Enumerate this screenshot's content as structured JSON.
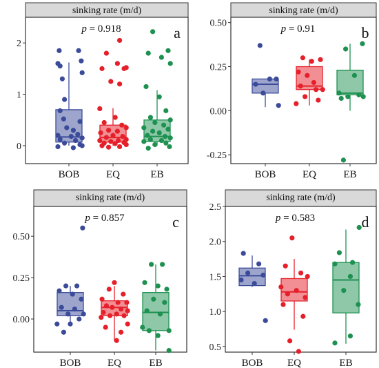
{
  "colors": {
    "BOB": "#3b4b9a",
    "EQ": "#e5202a",
    "EB": "#1e9151",
    "strip_fill": "#d9d9d9"
  },
  "chart_data": [
    {
      "type": "box",
      "id": "a",
      "panel_label": "a",
      "strip_title": "sinking rate (m/d)",
      "p_value_label": "p",
      "p_value_text": " = 0.918",
      "categories": [
        "BOB",
        "EQ",
        "EB"
      ],
      "ylim": [
        -0.35,
        2.5
      ],
      "yticks": [
        0,
        1,
        2
      ],
      "boxes": [
        {
          "q1": 0.07,
          "median": 0.17,
          "q3": 0.7,
          "whisker_low": 0.0,
          "whisker_high": 1.62
        },
        {
          "q1": 0.07,
          "median": 0.16,
          "q3": 0.4,
          "whisker_low": 0.0,
          "whisker_high": 0.73
        },
        {
          "q1": 0.08,
          "median": 0.18,
          "q3": 0.5,
          "whisker_low": 0.0,
          "whisker_high": 1.08
        }
      ],
      "points": [
        [
          [
            -0.22,
            1.85
          ],
          [
            0.22,
            1.85
          ],
          [
            -0.25,
            1.6
          ],
          [
            -0.2,
            1.55
          ],
          [
            0.28,
            1.65
          ],
          [
            0.3,
            1.42
          ],
          [
            -0.15,
            1.3
          ],
          [
            -0.1,
            0.9
          ],
          [
            -0.2,
            0.68
          ],
          [
            -0.12,
            0.52
          ],
          [
            0.25,
            0.47
          ],
          [
            -0.05,
            0.35
          ],
          [
            0.1,
            0.3
          ],
          [
            0.2,
            0.22
          ],
          [
            -0.25,
            0.2
          ],
          [
            0.05,
            0.18
          ],
          [
            0.3,
            0.15
          ],
          [
            -0.2,
            0.12
          ],
          [
            0.15,
            0.1
          ],
          [
            -0.1,
            0.05
          ],
          [
            0.25,
            0.02
          ],
          [
            -0.25,
            -0.02
          ],
          [
            0.1,
            -0.04
          ],
          [
            0.3,
            0.0
          ]
        ],
        [
          [
            0.15,
            2.05
          ],
          [
            -0.15,
            1.8
          ],
          [
            0.1,
            1.6
          ],
          [
            0.3,
            1.52
          ],
          [
            -0.05,
            1.25
          ],
          [
            0.15,
            1.2
          ],
          [
            -0.25,
            1.5
          ],
          [
            0.25,
            1.5
          ],
          [
            -0.3,
            0.72
          ],
          [
            0.05,
            0.55
          ],
          [
            -0.2,
            0.45
          ],
          [
            0.2,
            0.4
          ],
          [
            0.3,
            0.35
          ],
          [
            -0.1,
            0.3
          ],
          [
            0.1,
            0.28
          ],
          [
            -0.28,
            0.25
          ],
          [
            0.0,
            0.2
          ],
          [
            0.22,
            0.18
          ],
          [
            -0.15,
            0.16
          ],
          [
            0.3,
            0.12
          ],
          [
            -0.3,
            0.1
          ],
          [
            0.12,
            0.1
          ],
          [
            -0.05,
            0.08
          ],
          [
            0.25,
            0.06
          ],
          [
            -0.2,
            0.05
          ],
          [
            0.05,
            0.04
          ],
          [
            0.3,
            0.02
          ],
          [
            -0.25,
            0.0
          ],
          [
            0.15,
            -0.02
          ],
          [
            -0.1,
            -0.03
          ]
        ],
        [
          [
            -0.1,
            2.22
          ],
          [
            0.25,
            1.85
          ],
          [
            0.1,
            1.72
          ],
          [
            -0.2,
            1.8
          ],
          [
            0.3,
            1.6
          ],
          [
            -0.25,
            1.15
          ],
          [
            0.05,
            0.95
          ],
          [
            0.2,
            0.68
          ],
          [
            -0.15,
            0.55
          ],
          [
            0.3,
            0.5
          ],
          [
            -0.05,
            0.45
          ],
          [
            0.15,
            0.4
          ],
          [
            -0.3,
            0.35
          ],
          [
            0.25,
            0.32
          ],
          [
            -0.1,
            0.28
          ],
          [
            0.05,
            0.25
          ],
          [
            -0.22,
            0.2
          ],
          [
            0.18,
            0.18
          ],
          [
            0.3,
            0.15
          ],
          [
            -0.15,
            0.12
          ],
          [
            0.1,
            0.1
          ],
          [
            -0.3,
            0.08
          ],
          [
            0.2,
            0.05
          ],
          [
            -0.05,
            0.02
          ],
          [
            0.28,
            -0.02
          ],
          [
            -0.2,
            -0.05
          ]
        ]
      ]
    },
    {
      "type": "box",
      "id": "b",
      "panel_label": "b",
      "strip_title": "sinking rate (m/d)",
      "p_value_label": "p",
      "p_value_text": " = 0.91",
      "categories": [
        "BOB",
        "EQ",
        "EB"
      ],
      "ylim": [
        -0.3,
        0.53
      ],
      "yticks": [
        -0.25,
        0.0,
        0.25,
        0.5
      ],
      "ytick_labels": [
        "-0.25",
        "0.00",
        "0.25",
        "0.50"
      ],
      "boxes": [
        {
          "q1": 0.1,
          "median": 0.15,
          "q3": 0.18,
          "whisker_low": 0.02,
          "whisker_high": 0.18
        },
        {
          "q1": 0.12,
          "median": 0.14,
          "q3": 0.25,
          "whisker_low": 0.03,
          "whisker_high": 0.29
        },
        {
          "q1": 0.09,
          "median": 0.1,
          "q3": 0.23,
          "whisker_low": 0.0,
          "whisker_high": 0.38
        }
      ],
      "points": [
        [
          [
            -0.12,
            0.37
          ],
          [
            -0.22,
            0.15
          ],
          [
            0.1,
            0.18
          ],
          [
            0.25,
            0.18
          ],
          [
            -0.05,
            0.1
          ],
          [
            0.3,
            0.03
          ]
        ],
        [
          [
            -0.15,
            0.3
          ],
          [
            0.05,
            0.28
          ],
          [
            0.25,
            0.29
          ],
          [
            -0.25,
            0.22
          ],
          [
            -0.05,
            0.2
          ],
          [
            0.1,
            0.16
          ],
          [
            -0.2,
            0.14
          ],
          [
            0.15,
            0.12
          ],
          [
            0.3,
            0.12
          ],
          [
            -0.1,
            0.08
          ],
          [
            0.2,
            0.06
          ],
          [
            -0.3,
            0.04
          ]
        ],
        [
          [
            0.28,
            0.38
          ],
          [
            -0.1,
            0.35
          ],
          [
            0.1,
            0.2
          ],
          [
            -0.25,
            0.1
          ],
          [
            0.2,
            0.09
          ],
          [
            -0.05,
            0.08
          ],
          [
            0.3,
            0.08
          ],
          [
            -0.2,
            0.07
          ],
          [
            -0.15,
            -0.28
          ]
        ]
      ]
    },
    {
      "type": "box",
      "id": "c",
      "panel_label": "c",
      "strip_title": "sinking rate (m/d)",
      "p_value_label": "p",
      "p_value_text": " = 0.857",
      "categories": [
        "BOB",
        "EQ",
        "EB"
      ],
      "ylim": [
        -0.2,
        0.68
      ],
      "yticks": [
        0.0,
        0.25,
        0.5
      ],
      "ytick_labels": [
        "0.00",
        "0.25",
        "0.50"
      ],
      "boxes": [
        {
          "q1": 0.02,
          "median": 0.05,
          "q3": 0.16,
          "whisker_low": -0.02,
          "whisker_high": 0.2
        },
        {
          "q1": 0.02,
          "median": 0.07,
          "q3": 0.11,
          "whisker_low": -0.13,
          "whisker_high": 0.2
        },
        {
          "q1": -0.07,
          "median": 0.04,
          "q3": 0.16,
          "whisker_low": -0.19,
          "whisker_high": 0.33
        }
      ],
      "points": [
        [
          [
            0.28,
            0.55
          ],
          [
            -0.1,
            0.2
          ],
          [
            0.15,
            0.2
          ],
          [
            -0.25,
            0.17
          ],
          [
            0.05,
            0.15
          ],
          [
            0.25,
            0.12
          ],
          [
            -0.2,
            0.07
          ],
          [
            0.1,
            0.06
          ],
          [
            -0.05,
            0.03
          ],
          [
            0.3,
            0.03
          ],
          [
            -0.3,
            -0.03
          ],
          [
            0.0,
            -0.03
          ],
          [
            -0.15,
            -0.08
          ],
          [
            0.2,
            0.0
          ]
        ],
        [
          [
            0.0,
            0.22
          ],
          [
            -0.12,
            0.18
          ],
          [
            0.2,
            0.15
          ],
          [
            -0.28,
            0.12
          ],
          [
            0.08,
            0.1
          ],
          [
            0.28,
            0.1
          ],
          [
            -0.18,
            0.08
          ],
          [
            -0.05,
            0.07
          ],
          [
            0.15,
            0.06
          ],
          [
            0.3,
            0.05
          ],
          [
            -0.25,
            0.04
          ],
          [
            0.05,
            0.03
          ],
          [
            0.22,
            0.02
          ],
          [
            -0.1,
            0.02
          ],
          [
            -0.3,
            0.01
          ],
          [
            0.3,
            -0.03
          ],
          [
            -0.2,
            -0.05
          ],
          [
            0.15,
            -0.08
          ],
          [
            0.05,
            -0.13
          ]
        ],
        [
          [
            -0.1,
            0.33
          ],
          [
            0.15,
            0.33
          ],
          [
            -0.25,
            0.22
          ],
          [
            0.05,
            0.2
          ],
          [
            0.25,
            0.18
          ],
          [
            -0.05,
            0.12
          ],
          [
            0.2,
            0.1
          ],
          [
            -0.2,
            0.05
          ],
          [
            0.1,
            0.03
          ],
          [
            0.3,
            -0.07
          ],
          [
            -0.3,
            -0.05
          ],
          [
            -0.15,
            -0.07
          ],
          [
            0.05,
            -0.1
          ],
          [
            0.3,
            -0.19
          ]
        ]
      ]
    },
    {
      "type": "box",
      "id": "d",
      "panel_label": "d",
      "strip_title": "sinking rate (m/d)",
      "p_value_label": "p",
      "p_value_text": " = 0.583",
      "categories": [
        "BOB",
        "EQ",
        "EB"
      ],
      "ylim": [
        0.42,
        2.5
      ],
      "yticks": [
        0.5,
        1.0,
        1.5,
        2.0,
        2.5
      ],
      "ytick_labels": [
        "0.5",
        "1.0",
        "1.5",
        "2.0",
        "2.5"
      ],
      "boxes": [
        {
          "q1": 1.37,
          "median": 1.51,
          "q3": 1.62,
          "whisker_low": 1.35,
          "whisker_high": 1.8
        },
        {
          "q1": 1.15,
          "median": 1.28,
          "q3": 1.47,
          "whisker_low": 0.74,
          "whisker_high": 1.75
        },
        {
          "q1": 0.98,
          "median": 1.45,
          "q3": 1.7,
          "whisker_low": 0.54,
          "whisker_high": 2.17
        }
      ],
      "points": [
        [
          [
            -0.2,
            1.83
          ],
          [
            0.15,
            1.68
          ],
          [
            -0.1,
            1.55
          ],
          [
            0.25,
            1.52
          ],
          [
            0.05,
            1.4
          ],
          [
            -0.25,
            1.45
          ],
          [
            0.3,
            0.87
          ]
        ],
        [
          [
            -0.05,
            2.05
          ],
          [
            -0.2,
            1.65
          ],
          [
            0.15,
            1.55
          ],
          [
            0.3,
            1.5
          ],
          [
            -0.3,
            1.35
          ],
          [
            0.05,
            1.3
          ],
          [
            -0.15,
            1.25
          ],
          [
            0.25,
            1.2
          ],
          [
            -0.25,
            1.1
          ],
          [
            0.2,
            0.93
          ],
          [
            -0.1,
            0.58
          ],
          [
            0.1,
            0.43
          ]
        ],
        [
          [
            0.3,
            2.2
          ],
          [
            -0.15,
            1.84
          ],
          [
            0.15,
            1.7
          ],
          [
            -0.25,
            1.68
          ],
          [
            0.1,
            1.5
          ],
          [
            -0.05,
            1.3
          ],
          [
            0.28,
            1.1
          ],
          [
            0.1,
            0.65
          ],
          [
            -0.25,
            0.55
          ]
        ]
      ]
    }
  ]
}
